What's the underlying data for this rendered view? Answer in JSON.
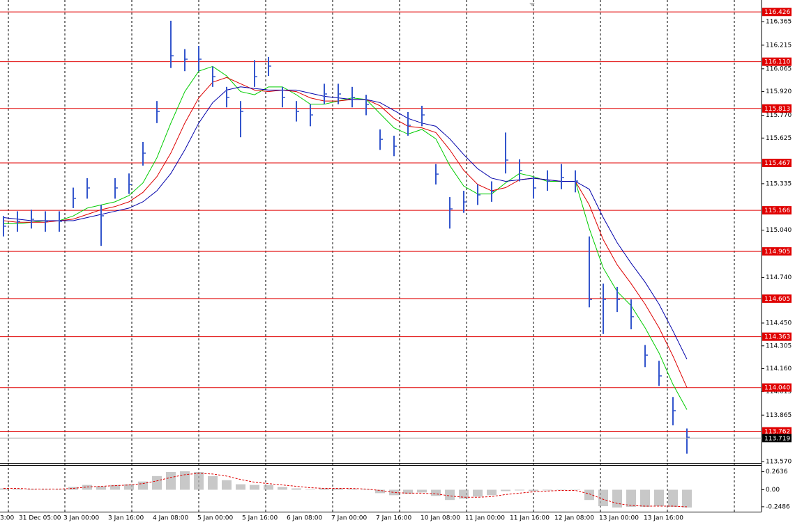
{
  "chart_data": {
    "type": "ohlc",
    "color": "#3355cc",
    "ylim": [
      113.561,
      116.502
    ],
    "yticks": [
      116.365,
      116.215,
      116.065,
      {
        "value": 115.92,
        "label": "115.920"
      },
      {
        "value": 115.77,
        "label": "115.770"
      },
      115.625,
      115.335,
      {
        "value": 115.04,
        "label": "115.040"
      },
      {
        "value": 114.74,
        "label": "114.740"
      },
      {
        "value": 114.45,
        "label": "114.450"
      },
      114.305,
      {
        "value": 114.16,
        "label": "114.160"
      },
      114.015,
      113.865,
      {
        "value": 113.57,
        "label": "113.570"
      }
    ],
    "levels": [
      116.426,
      {
        "value": 116.11,
        "label": "116.110"
      },
      115.813,
      115.467,
      115.166,
      114.905,
      114.605,
      114.363,
      {
        "value": 114.04,
        "label": "114.040"
      },
      113.762
    ],
    "level_color": "#e00000",
    "current_price": 113.719,
    "x_labels": [
      "3:00",
      "31 Dec 05:00",
      "3 Jan 00:00",
      "3 Jan 16:00",
      "4 Jan 08:00",
      "5 Jan 00:00",
      "5 Jan 16:00",
      "6 Jan 08:00",
      "7 Jan 00:00",
      "7 Jan 16:00",
      "10 Jan 08:00",
      "11 Jan 00:00",
      "11 Jan 16:00",
      "12 Jan 08:00",
      "13 Jan 00:00",
      "13 Jan 16:00"
    ],
    "high": [
      115.13,
      115.16,
      115.17,
      115.16,
      115.16,
      115.31,
      115.37,
      115.2,
      115.37,
      115.4,
      115.6,
      115.86,
      116.37,
      116.19,
      116.21,
      116.08,
      115.95,
      115.86,
      116.12,
      116.14,
      115.95,
      115.86,
      115.84,
      115.97,
      115.97,
      115.95,
      115.9,
      115.68,
      115.64,
      115.79,
      115.83,
      115.46,
      115.25,
      115.29,
      115.33,
      115.35,
      115.66,
      115.49,
      115.38,
      115.42,
      115.46,
      115.42,
      115.0,
      114.7,
      114.68,
      114.6,
      114.31,
      114.21,
      113.98,
      113.78
    ],
    "low": [
      115.0,
      115.03,
      115.05,
      115.03,
      115.03,
      115.18,
      115.24,
      114.94,
      115.24,
      115.27,
      115.45,
      115.72,
      116.07,
      116.05,
      116.05,
      115.95,
      115.82,
      115.63,
      115.95,
      116.02,
      115.82,
      115.73,
      115.7,
      115.84,
      115.84,
      115.82,
      115.77,
      115.55,
      115.51,
      115.64,
      115.7,
      115.33,
      115.05,
      115.15,
      115.2,
      115.22,
      115.4,
      115.35,
      115.24,
      115.29,
      115.3,
      115.28,
      114.55,
      114.38,
      114.52,
      114.41,
      114.17,
      114.05,
      113.8,
      113.62
    ],
    "close": [
      115.065,
      115.096,
      115.109,
      115.096,
      115.096,
      115.242,
      115.308,
      115.131,
      115.308,
      115.33,
      115.529,
      115.794,
      116.148,
      116.126,
      116.126,
      116.015,
      115.883,
      115.794,
      116.015,
      116.082,
      115.883,
      115.794,
      115.772,
      115.905,
      115.905,
      115.883,
      115.839,
      115.617,
      115.573,
      115.706,
      115.772,
      115.396,
      115.175,
      115.219,
      115.264,
      115.286,
      115.485,
      115.418,
      115.308,
      115.352,
      115.374,
      115.352,
      114.6,
      114.6,
      114.6,
      114.49,
      114.246,
      114.114,
      113.893,
      113.724
    ],
    "moving_averages": [
      {
        "color": "#00cc00",
        "values": [
          115.08,
          115.08,
          115.09,
          115.1,
          115.1,
          115.13,
          115.18,
          115.2,
          115.22,
          115.26,
          115.34,
          115.5,
          115.72,
          115.92,
          116.05,
          116.08,
          116.02,
          115.92,
          115.9,
          115.95,
          115.95,
          115.9,
          115.84,
          115.84,
          115.86,
          115.88,
          115.87,
          115.78,
          115.69,
          115.65,
          115.68,
          115.62,
          115.45,
          115.32,
          115.27,
          115.27,
          115.34,
          115.4,
          115.38,
          115.35,
          115.35,
          115.35,
          115.05,
          114.8,
          114.65,
          114.56,
          114.42,
          114.26,
          114.06,
          113.9
        ]
      },
      {
        "color": "#dd0000",
        "values": [
          115.1,
          115.09,
          115.09,
          115.09,
          115.1,
          115.11,
          115.14,
          115.17,
          115.19,
          115.22,
          115.28,
          115.38,
          115.53,
          115.72,
          115.88,
          115.98,
          116.01,
          115.97,
          115.93,
          115.92,
          115.93,
          115.92,
          115.88,
          115.86,
          115.86,
          115.87,
          115.87,
          115.83,
          115.75,
          115.7,
          115.69,
          115.66,
          115.55,
          115.42,
          115.33,
          115.29,
          115.31,
          115.36,
          115.37,
          115.36,
          115.35,
          115.35,
          115.2,
          114.98,
          114.82,
          114.7,
          114.57,
          114.42,
          114.24,
          114.04
        ]
      },
      {
        "color": "#0000aa",
        "values": [
          115.12,
          115.11,
          115.1,
          115.1,
          115.1,
          115.1,
          115.12,
          115.14,
          115.16,
          115.18,
          115.22,
          115.29,
          115.4,
          115.55,
          115.72,
          115.85,
          115.93,
          115.95,
          115.94,
          115.93,
          115.93,
          115.93,
          115.91,
          115.89,
          115.88,
          115.87,
          115.87,
          115.85,
          115.8,
          115.75,
          115.72,
          115.7,
          115.62,
          115.52,
          115.43,
          115.37,
          115.35,
          115.36,
          115.37,
          115.36,
          115.35,
          115.35,
          115.3,
          115.12,
          114.96,
          114.83,
          114.71,
          114.57,
          114.4,
          114.22
        ]
      }
    ],
    "macd": {
      "ylim": [
        -0.321,
        0.351
      ],
      "yticks": [
        0.2636,
        {
          "value": 0,
          "label": "0.00"
        },
        -0.2486
      ],
      "histogram_color": "#b0b0b0",
      "signal_color": "#dd0000",
      "histogram": [
        0.02,
        0.01,
        0.01,
        0.0,
        0.0,
        0.04,
        0.07,
        0.05,
        0.07,
        0.08,
        0.12,
        0.2,
        0.26,
        0.27,
        0.26,
        0.2,
        0.14,
        0.08,
        0.07,
        0.07,
        0.04,
        0.02,
        0.0,
        0.02,
        0.02,
        0.01,
        0.0,
        -0.05,
        -0.08,
        -0.06,
        -0.04,
        -0.09,
        -0.15,
        -0.13,
        -0.1,
        -0.08,
        -0.02,
        -0.01,
        -0.02,
        -0.01,
        0.0,
        0.0,
        -0.15,
        -0.24,
        -0.26,
        -0.25,
        -0.25,
        -0.24,
        -0.25,
        -0.26
      ],
      "signal": [
        0.02,
        0.02,
        0.01,
        0.01,
        0.01,
        0.02,
        0.04,
        0.05,
        0.06,
        0.07,
        0.09,
        0.13,
        0.18,
        0.22,
        0.24,
        0.23,
        0.2,
        0.15,
        0.11,
        0.09,
        0.07,
        0.05,
        0.03,
        0.02,
        0.02,
        0.02,
        0.01,
        -0.01,
        -0.04,
        -0.05,
        -0.05,
        -0.06,
        -0.09,
        -0.11,
        -0.11,
        -0.1,
        -0.07,
        -0.05,
        -0.03,
        -0.02,
        -0.01,
        -0.01,
        -0.06,
        -0.14,
        -0.2,
        -0.23,
        -0.24,
        -0.24,
        -0.24,
        -0.25
      ]
    }
  }
}
